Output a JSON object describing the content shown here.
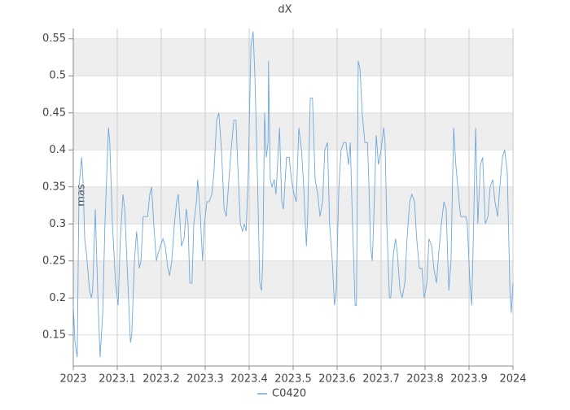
{
  "chart_data": {
    "type": "line",
    "title": "dX",
    "y_label": "mas",
    "x": [
      2023,
      2023.004,
      2023.009,
      2023.013,
      2023.019,
      2023.022,
      2023.026,
      2023.03,
      2023.037,
      2023.041,
      2023.044,
      2023.05,
      2023.056,
      2023.061,
      2023.067,
      2023.072,
      2023.08,
      2023.083,
      2023.089,
      2023.096,
      2023.102,
      2023.107,
      2023.113,
      2023.117,
      2023.122,
      2023.13,
      2023.133,
      2023.139,
      2023.144,
      2023.15,
      2023.154,
      2023.159,
      2023.165,
      2023.169,
      2023.174,
      2023.178,
      2023.183,
      2023.189,
      2023.193,
      2023.198,
      2023.204,
      2023.209,
      2023.215,
      2023.219,
      2023.224,
      2023.23,
      2023.235,
      2023.239,
      2023.243,
      2023.246,
      2023.252,
      2023.257,
      2023.261,
      2023.265,
      2023.27,
      2023.274,
      2023.28,
      2023.283,
      2023.289,
      2023.294,
      2023.298,
      2023.304,
      2023.309,
      2023.315,
      2023.32,
      2023.326,
      2023.331,
      2023.337,
      2023.343,
      2023.348,
      2023.354,
      2023.359,
      2023.365,
      2023.37,
      2023.374,
      2023.38,
      2023.385,
      2023.389,
      2023.393,
      2023.398,
      2023.404,
      2023.409,
      2023.413,
      2023.419,
      2023.424,
      2023.428,
      2023.431,
      2023.435,
      2023.439,
      2023.443,
      2023.444,
      2023.448,
      2023.452,
      2023.457,
      2023.461,
      2023.469,
      2023.474,
      2023.478,
      2023.485,
      2023.491,
      2023.496,
      2023.502,
      2023.507,
      2023.513,
      2023.519,
      2023.524,
      2023.53,
      2023.533,
      2023.539,
      2023.544,
      2023.55,
      2023.556,
      2023.561,
      2023.567,
      2023.572,
      2023.578,
      2023.583,
      2023.589,
      2023.594,
      2023.598,
      2023.604,
      2023.609,
      2023.615,
      2023.62,
      2023.626,
      2023.63,
      2023.635,
      2023.641,
      2023.644,
      2023.648,
      2023.652,
      2023.657,
      2023.663,
      2023.669,
      2023.672,
      2023.676,
      2023.68,
      2023.683,
      2023.689,
      2023.694,
      2023.7,
      2023.706,
      2023.709,
      2023.713,
      2023.719,
      2023.722,
      2023.728,
      2023.733,
      2023.737,
      2023.743,
      2023.748,
      2023.754,
      2023.759,
      2023.765,
      2023.77,
      2023.776,
      2023.781,
      2023.787,
      2023.793,
      2023.798,
      2023.804,
      2023.809,
      2023.815,
      2023.82,
      2023.826,
      2023.831,
      2023.837,
      2023.843,
      2023.848,
      2023.854,
      2023.859,
      2023.865,
      2023.87,
      2023.876,
      2023.881,
      2023.887,
      2023.893,
      2023.896,
      2023.902,
      2023.906,
      2023.909,
      2023.915,
      2023.92,
      2023.926,
      2023.931,
      2023.937,
      2023.943,
      2023.948,
      2023.954,
      2023.959,
      2023.965,
      2023.97,
      2023.976,
      2023.981,
      2023.987,
      2023.993,
      2023.996,
      2024
    ],
    "series": [
      {
        "name": "C0420",
        "color": "#6fa8dc",
        "values": [
          0.19,
          0.14,
          0.12,
          0.35,
          0.39,
          0.36,
          0.28,
          0.26,
          0.21,
          0.2,
          0.21,
          0.32,
          0.2,
          0.12,
          0.18,
          0.3,
          0.43,
          0.41,
          0.3,
          0.22,
          0.19,
          0.28,
          0.34,
          0.32,
          0.25,
          0.14,
          0.15,
          0.25,
          0.29,
          0.24,
          0.25,
          0.31,
          0.31,
          0.31,
          0.34,
          0.35,
          0.3,
          0.25,
          0.26,
          0.27,
          0.28,
          0.27,
          0.24,
          0.23,
          0.25,
          0.3,
          0.33,
          0.34,
          0.3,
          0.27,
          0.28,
          0.32,
          0.3,
          0.22,
          0.22,
          0.3,
          0.33,
          0.36,
          0.31,
          0.25,
          0.3,
          0.33,
          0.33,
          0.34,
          0.37,
          0.44,
          0.45,
          0.4,
          0.32,
          0.31,
          0.36,
          0.4,
          0.44,
          0.44,
          0.38,
          0.3,
          0.29,
          0.3,
          0.29,
          0.37,
          0.54,
          0.56,
          0.5,
          0.36,
          0.22,
          0.21,
          0.25,
          0.45,
          0.39,
          0.41,
          0.52,
          0.36,
          0.35,
          0.36,
          0.34,
          0.43,
          0.33,
          0.32,
          0.39,
          0.39,
          0.36,
          0.34,
          0.33,
          0.43,
          0.4,
          0.35,
          0.27,
          0.31,
          0.47,
          0.47,
          0.36,
          0.34,
          0.31,
          0.33,
          0.4,
          0.41,
          0.3,
          0.25,
          0.19,
          0.21,
          0.35,
          0.4,
          0.41,
          0.41,
          0.38,
          0.41,
          0.3,
          0.19,
          0.19,
          0.52,
          0.51,
          0.45,
          0.41,
          0.41,
          0.36,
          0.27,
          0.25,
          0.3,
          0.42,
          0.38,
          0.4,
          0.43,
          0.41,
          0.3,
          0.2,
          0.2,
          0.26,
          0.28,
          0.26,
          0.21,
          0.2,
          0.22,
          0.28,
          0.33,
          0.34,
          0.33,
          0.28,
          0.24,
          0.24,
          0.2,
          0.22,
          0.28,
          0.27,
          0.24,
          0.22,
          0.26,
          0.3,
          0.33,
          0.32,
          0.21,
          0.25,
          0.43,
          0.38,
          0.34,
          0.31,
          0.31,
          0.31,
          0.3,
          0.22,
          0.19,
          0.26,
          0.43,
          0.3,
          0.38,
          0.39,
          0.3,
          0.31,
          0.35,
          0.36,
          0.33,
          0.31,
          0.35,
          0.39,
          0.4,
          0.37,
          0.21,
          0.18,
          0.22
        ]
      }
    ],
    "xlim": [
      2023,
      2024
    ],
    "xticks": [
      2023,
      2023.1,
      2023.2,
      2023.3,
      2023.4,
      2023.5,
      2023.6,
      2023.7,
      2023.8,
      2023.9,
      2024
    ],
    "ylim": [
      0.108,
      0.564
    ],
    "yticks": [
      0.15,
      0.2,
      0.25,
      0.3,
      0.35,
      0.4,
      0.45,
      0.5,
      0.55
    ],
    "grid": true,
    "legend": "bottom"
  }
}
